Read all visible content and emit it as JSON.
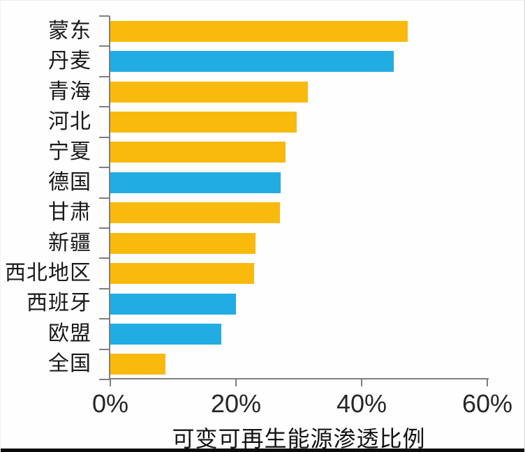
{
  "chart_data": {
    "type": "bar",
    "orientation": "horizontal",
    "title": "",
    "xlabel": "可变可再生能源渗透比例",
    "ylabel": "",
    "xlim": [
      0,
      60
    ],
    "x_tick_labels": [
      "0%",
      "20%",
      "40%",
      "60%"
    ],
    "x_tick_values": [
      0,
      20,
      40,
      60
    ],
    "grid": false,
    "legend": false,
    "categories": [
      "蒙东",
      "丹麦",
      "青海",
      "河北",
      "宁夏",
      "德国",
      "甘肃",
      "新疆",
      "西北地区",
      "西班牙",
      "欧盟",
      "全国"
    ],
    "values": [
      47.3,
      45.1,
      31.4,
      29.7,
      27.9,
      27.1,
      27.0,
      23.1,
      22.9,
      20.0,
      17.7,
      8.8
    ],
    "bar_colors": [
      "#F9BA0D",
      "#21ACE3",
      "#F9BA0D",
      "#F9BA0D",
      "#F9BA0D",
      "#21ACE3",
      "#F9BA0D",
      "#F9BA0D",
      "#F9BA0D",
      "#21ACE3",
      "#21ACE3",
      "#F9BA0D"
    ],
    "series_legend_note": {
      "yellow_china_regions": "#F9BA0D",
      "blue_international": "#21ACE3"
    }
  },
  "colors": {
    "axis": "#7f7f7f",
    "label_text": "#1a1a1a",
    "tick_text": "#262626",
    "background": "#fefefe",
    "bottom_border": "#0b0b0b"
  }
}
